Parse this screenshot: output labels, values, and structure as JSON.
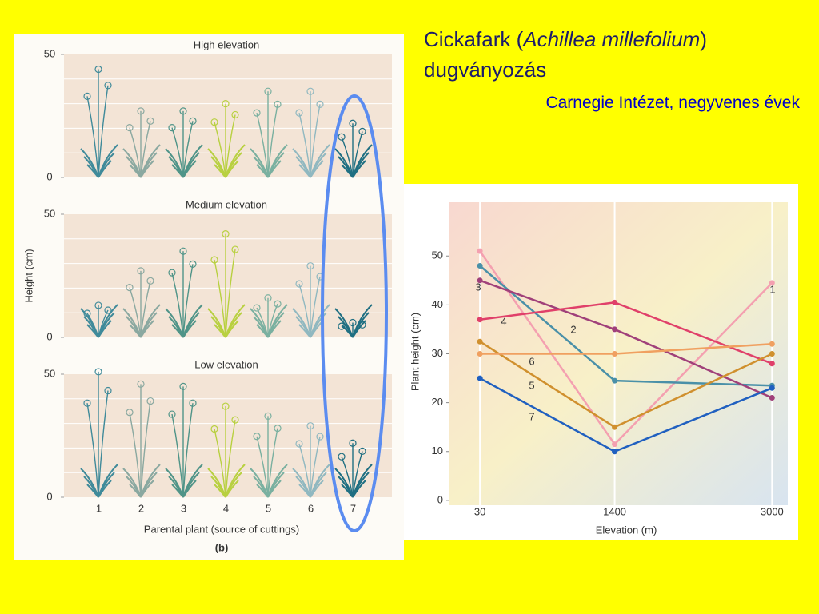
{
  "slide": {
    "title_start": "Cickafark (",
    "title_italic": "Achillea millefolium",
    "title_end": ")",
    "title_line2": "dugványozás",
    "subtitle": "Carnegie Intézet, negyvenes évek"
  },
  "chart_data": [
    {
      "type": "plants",
      "y_label": "Height (cm)",
      "x_label": "Parental plant (source of cuttings)",
      "caption": "(b)",
      "categories": [
        "1",
        "2",
        "3",
        "4",
        "5",
        "6",
        "7"
      ],
      "colors": [
        "#3f8a9a",
        "#8aa8a0",
        "#4f9488",
        "#b8d040",
        "#7ab0a0",
        "#90b8c0",
        "#1f6f82"
      ],
      "ylim": [
        0,
        50
      ],
      "yticks": [
        0,
        50
      ],
      "grid": true,
      "series": [
        {
          "name": "High elevation",
          "values": [
            44,
            27,
            27,
            30,
            35,
            35,
            22
          ]
        },
        {
          "name": "Medium elevation",
          "values": [
            13,
            27,
            35,
            42,
            16,
            29,
            6
          ]
        },
        {
          "name": "Low elevation",
          "values": [
            51,
            46,
            45,
            37,
            33,
            29,
            22
          ]
        }
      ]
    },
    {
      "type": "line",
      "x_label": "Elevation (m)",
      "y_label": "Plant height (cm)",
      "x": [
        30,
        1400,
        3000
      ],
      "xlim": [
        -280,
        3160
      ],
      "xticks": [
        30,
        1400,
        3000
      ],
      "ylim": [
        -1,
        61
      ],
      "yticks": [
        0,
        10,
        20,
        30,
        40,
        50
      ],
      "grid": "x",
      "series": [
        {
          "name": "1",
          "color": "#f4a0b0",
          "values": [
            51,
            11.5,
            44.5
          ]
        },
        {
          "name": "2",
          "color": "#4a90a8",
          "values": [
            48,
            24.5,
            23.5
          ]
        },
        {
          "name": "3",
          "color": "#a0407a",
          "values": [
            45,
            35,
            21
          ]
        },
        {
          "name": "4",
          "color": "#e0406a",
          "values": [
            37,
            40.5,
            28
          ]
        },
        {
          "name": "5",
          "color": "#d0902e",
          "values": [
            32.5,
            15,
            30
          ]
        },
        {
          "name": "6",
          "color": "#f0a060",
          "values": [
            30,
            30,
            32
          ]
        },
        {
          "name": "7",
          "color": "#2060c0",
          "values": [
            25,
            10,
            23
          ]
        }
      ]
    }
  ]
}
